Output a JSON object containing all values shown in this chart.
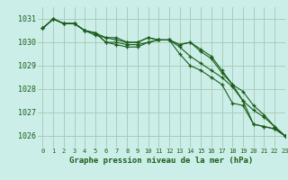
{
  "title": "Graphe pression niveau de la mer (hPa)",
  "background_color": "#cceee8",
  "grid_color": "#aaccbb",
  "line_color": "#1a5c1a",
  "marker_color": "#1a5c1a",
  "xlim": [
    -0.5,
    23
  ],
  "ylim": [
    1025.5,
    1031.5
  ],
  "yticks": [
    1026,
    1027,
    1028,
    1029,
    1030,
    1031
  ],
  "xtick_labels": [
    "0",
    "1",
    "2",
    "3",
    "4",
    "5",
    "6",
    "7",
    "8",
    "9",
    "10",
    "11",
    "12",
    "13",
    "14",
    "15",
    "16",
    "17",
    "18",
    "19",
    "20",
    "21",
    "22",
    "23"
  ],
  "series": [
    [
      1030.6,
      1031.0,
      1030.8,
      1030.8,
      1030.5,
      1030.4,
      1030.0,
      1030.0,
      1029.9,
      1029.9,
      1030.0,
      1030.1,
      1030.1,
      1029.8,
      1029.4,
      1029.1,
      1028.8,
      1028.5,
      1028.1,
      1027.5,
      1026.5,
      1026.4,
      1026.3,
      1026.0
    ],
    [
      1030.6,
      1031.0,
      1030.8,
      1030.8,
      1030.5,
      1030.3,
      1030.2,
      1030.1,
      1030.0,
      1030.0,
      1030.2,
      1030.1,
      1030.1,
      1029.9,
      1030.0,
      1029.7,
      1029.4,
      1028.8,
      1028.2,
      1027.9,
      1027.3,
      1026.9,
      1026.4,
      1026.0
    ],
    [
      1030.6,
      1031.0,
      1030.8,
      1030.8,
      1030.5,
      1030.4,
      1030.2,
      1030.2,
      1030.0,
      1030.0,
      1030.2,
      1030.1,
      1030.1,
      1029.9,
      1030.0,
      1029.6,
      1029.3,
      1028.7,
      1028.2,
      1027.5,
      1027.1,
      1026.8,
      1026.4,
      1026.0
    ],
    [
      1030.6,
      1031.0,
      1030.8,
      1030.8,
      1030.5,
      1030.4,
      1030.0,
      1029.9,
      1029.8,
      1029.8,
      1030.0,
      1030.1,
      1030.1,
      1029.5,
      1029.0,
      1028.8,
      1028.5,
      1028.2,
      1027.4,
      1027.3,
      1026.5,
      1026.4,
      1026.3,
      1026.0
    ]
  ]
}
